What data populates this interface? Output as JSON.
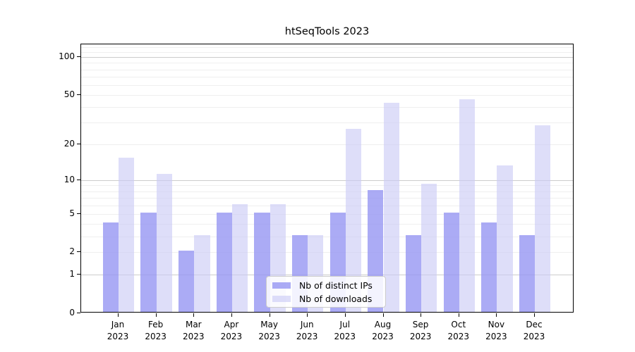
{
  "title": "htSeqTools 2023",
  "chart_data": {
    "type": "bar",
    "title": "htSeqTools 2023",
    "xlabel": "",
    "ylabel": "",
    "categories": [
      "Jan",
      "Feb",
      "Mar",
      "Apr",
      "May",
      "Jun",
      "Jul",
      "Aug",
      "Sep",
      "Oct",
      "Nov",
      "Dec"
    ],
    "category_year": "2023",
    "series": [
      {
        "name": "Nb of distinct IPs",
        "color": "#9696f3",
        "opacity": 0.8,
        "values": [
          4,
          5,
          2,
          5,
          5,
          3,
          5,
          8,
          3,
          5,
          4,
          3
        ]
      },
      {
        "name": "Nb of downloads",
        "color": "#c9c9f5",
        "opacity": 0.62,
        "values": [
          15,
          11,
          3,
          6,
          6,
          3,
          26,
          42,
          9,
          45,
          13,
          28
        ]
      }
    ],
    "axis": {
      "yscale": "log1p",
      "y_ticks": [
        0,
        1,
        2,
        5,
        10,
        20,
        50,
        100
      ],
      "ylim": [
        0,
        126
      ],
      "grid_major": [
        1,
        10,
        100
      ],
      "grid_minor": [
        2,
        3,
        4,
        5,
        6,
        7,
        8,
        9,
        20,
        30,
        40,
        50,
        60,
        70,
        80,
        90,
        110,
        120
      ]
    },
    "legend": {
      "position": "lower center"
    }
  }
}
